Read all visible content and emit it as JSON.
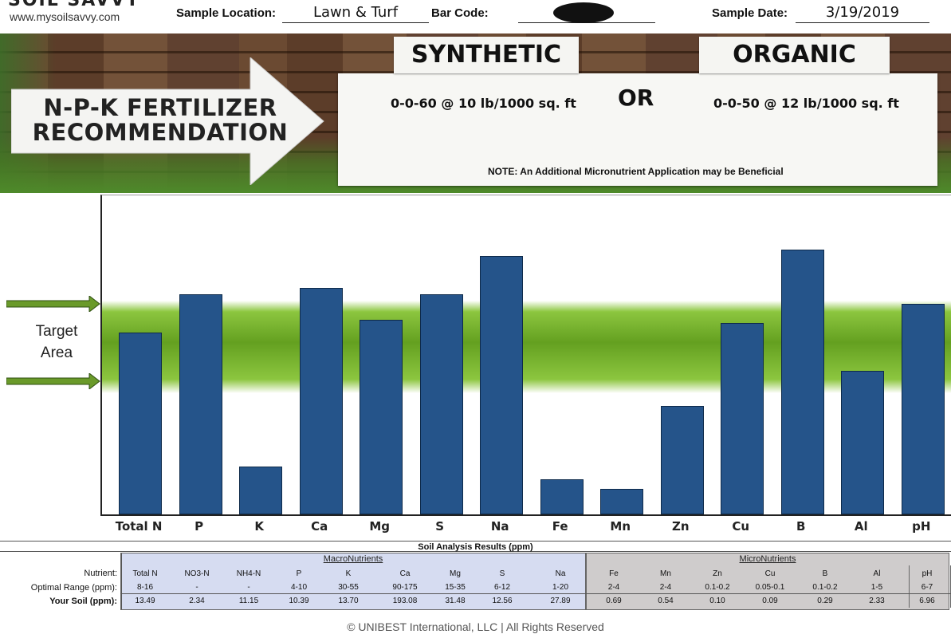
{
  "header": {
    "brand": "SOIL SAVVY",
    "website": "www.mysoilsavvy.com",
    "sample_location_label": "Sample Location:",
    "sample_location_value": "Lawn & Turf",
    "bar_code_label": "Bar Code:",
    "sample_date_label": "Sample Date:",
    "sample_date_value": "3/19/2019"
  },
  "recommendation": {
    "title_line1": "N-P-K FERTILIZER",
    "title_line2": "RECOMMENDATION",
    "synthetic_label": "SYNTHETIC",
    "organic_label": "ORGANIC",
    "synthetic_rate": "0-0-60 @ 10 lb/1000 sq. ft",
    "or_label": "OR",
    "organic_rate": "0-0-50 @ 12 lb/1000 sq. ft",
    "note": "NOTE: An Additional Micronutrient Application may be Beneficial"
  },
  "chart_data": {
    "type": "bar",
    "categories": [
      "Total N",
      "P",
      "K",
      "Ca",
      "Mg",
      "S",
      "Na",
      "Fe",
      "Mn",
      "Zn",
      "Cu",
      "B",
      "Al",
      "pH"
    ],
    "values": [
      57,
      69,
      15,
      71,
      61,
      69,
      81,
      11,
      8,
      34,
      60,
      83,
      45,
      66
    ],
    "ylim": [
      0,
      100
    ],
    "target_band_fraction": [
      0.38,
      0.67
    ],
    "target_label_line1": "Target",
    "target_label_line2": "Area",
    "bar_color": "#25548a",
    "band_color": "#64a020"
  },
  "table": {
    "title": "Soil Analysis Results (ppm)",
    "macro_label": "MacroNutrients",
    "micro_label": "MicroNutrients",
    "row_labels": [
      "Nutrient:",
      "Optimal Range (ppm):",
      "Your Soil (ppm):"
    ],
    "nutrients": [
      "Total N",
      "NO3-N",
      "NH4-N",
      "P",
      "K",
      "Ca",
      "Mg",
      "S",
      "Na",
      "Fe",
      "Mn",
      "Zn",
      "Cu",
      "B",
      "Al",
      "pH"
    ],
    "optimal": [
      "8-16",
      "-",
      "-",
      "4-10",
      "30-55",
      "90-175",
      "15-35",
      "6-12",
      "1-20",
      "2-4",
      "2-4",
      "0.1-0.2",
      "0.05-0.1",
      "0.1-0.2",
      "1-5",
      "6-7"
    ],
    "your_soil": [
      "13.49",
      "2.34",
      "11.15",
      "10.39",
      "13.70",
      "193.08",
      "31.48",
      "12.56",
      "27.89",
      "0.69",
      "0.54",
      "0.10",
      "0.09",
      "0.29",
      "2.33",
      "6.96"
    ]
  },
  "footer": {
    "copyright": "© UNIBEST International, LLC   |   All Rights Reserved"
  }
}
